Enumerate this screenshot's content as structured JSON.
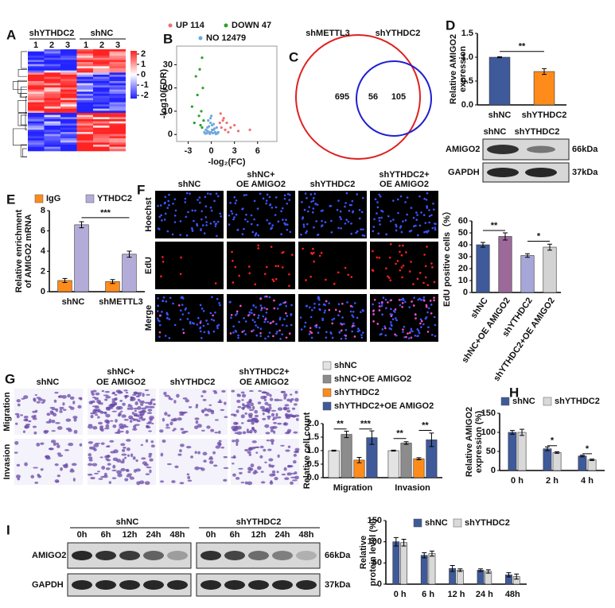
{
  "panel_labels": [
    "A",
    "B",
    "C",
    "D",
    "E",
    "F",
    "G",
    "H",
    "I"
  ],
  "heatmap": {
    "groups": [
      "shYTHDC2",
      "shNC"
    ],
    "columns": [
      "1",
      "2",
      "3",
      "1",
      "2",
      "3"
    ],
    "colorbar_ticks": [
      2,
      1,
      0,
      -1,
      -2
    ]
  },
  "venn": {
    "sets": [
      "shMETTL3",
      "shYTHDC2"
    ],
    "counts": [
      695,
      56,
      105
    ]
  },
  "blot_D": {
    "lanes": [
      "shNC",
      "shYTHDC2"
    ],
    "bands": [
      "AMIGO2",
      "GAPDH"
    ],
    "sizes": [
      "66kDa",
      "37kDa"
    ]
  },
  "images_F": {
    "columns": [
      [
        "shNC"
      ],
      [
        "shNC+",
        "OE AMIGO2"
      ],
      [
        "shYTHDC2"
      ],
      [
        "shYTHDC2+",
        "OE AMIGO2"
      ]
    ],
    "rows": [
      "Hoechst",
      "EdU",
      "Merge"
    ]
  },
  "images_G": {
    "columns": [
      [
        "shNC"
      ],
      [
        "shNC+",
        "OE AMIGO2"
      ],
      [
        "shYTHDC2"
      ],
      [
        "shYTHDC2+",
        "OE AMIGO2"
      ]
    ],
    "rows": [
      "Migration",
      "Invasion"
    ]
  },
  "blot_I": {
    "groups": [
      "shNC",
      "shYTHDC2"
    ],
    "lanes": [
      "0h",
      "6h",
      "12h",
      "24h",
      "48h"
    ],
    "bands": [
      "AMIGO2",
      "GAPDH"
    ],
    "sizes": [
      "66kDa",
      "37kDa"
    ]
  },
  "chart_data": [
    {
      "type": "scatter",
      "xlabel": "-log₂(FC)",
      "ylabel": "-log10(FDR)",
      "xlim": [
        -4.5,
        8.5
      ],
      "ylim": [
        -3,
        38
      ],
      "xticks": [
        -3,
        0,
        3,
        6
      ],
      "yticks": [
        0,
        10,
        20,
        30
      ],
      "series": [
        {
          "name": "UP 114",
          "color": "#f07070",
          "x": [
            1.2,
            1.5,
            2.0,
            3.0,
            2.5,
            1.1,
            1.8,
            5.0,
            3.5,
            1.3,
            2.2,
            1.6
          ],
          "y": [
            9,
            6,
            5,
            4,
            3,
            5,
            2,
            2,
            1.5,
            3,
            1,
            7
          ]
        },
        {
          "name": "DOWN 47",
          "color": "#2ca02c",
          "x": [
            -1.2,
            -1.5,
            -2.0,
            -1.1,
            -1.8,
            -2.5,
            -1.3,
            -1.6,
            -1.0,
            -2.2,
            -1.4,
            -1.2
          ],
          "y": [
            33,
            28,
            25,
            20,
            17,
            12,
            10,
            8,
            6,
            5,
            4,
            3
          ]
        },
        {
          "name": "NO 12479",
          "color": "#6fa8dc",
          "x": [
            -0.9,
            -0.7,
            -0.5,
            -0.3,
            -0.1,
            0.1,
            0.3,
            0.5,
            0.7,
            0.9,
            -0.6,
            -0.2,
            0.2,
            0.6,
            -0.4,
            0.4,
            0,
            -0.8,
            0.8,
            -0.3,
            0.3,
            -0.1,
            0.1,
            0,
            0.5,
            -0.5
          ],
          "y": [
            1,
            2,
            3,
            1,
            5,
            4,
            2,
            1,
            3,
            1,
            0.5,
            0.3,
            0.6,
            0.2,
            6,
            2.5,
            8,
            0.4,
            0.5,
            3.5,
            4.5,
            7,
            2,
            1,
            0.8,
            1.5
          ]
        }
      ]
    },
    {
      "type": "bar",
      "ylabel": [
        "Relative AMIGO2",
        "expression"
      ],
      "categories": [
        "shNC",
        "shYTHDC2"
      ],
      "values": [
        1.0,
        0.7
      ],
      "errors": [
        0.01,
        0.06
      ],
      "colors": [
        "#3f5a9a",
        "#ff8c1a"
      ],
      "ylim": [
        0,
        1.5
      ],
      "yticks": [
        {
          "value": 0,
          "label": "0.0"
        },
        0.5,
        {
          "value": 1,
          "label": "1.0"
        },
        1.5
      ],
      "annotations": [
        "**"
      ]
    },
    {
      "type": "bar",
      "ylabel": [
        "Relative enrichment",
        "of AMIGO2 mRNA"
      ],
      "categories": [
        "shNC",
        "shMETTL3"
      ],
      "series": [
        {
          "name": "IgG",
          "color": "#ff8c1a",
          "values": [
            1.1,
            1.0
          ],
          "errors": [
            0.2,
            0.2
          ]
        },
        {
          "name": "YTHDC2",
          "color": "#b3acd9",
          "values": [
            6.6,
            3.7
          ],
          "errors": [
            0.3,
            0.3
          ]
        }
      ],
      "ylim": [
        0,
        8
      ],
      "yticks": [
        0,
        2,
        4,
        6,
        8
      ],
      "annotations": [
        "***"
      ]
    },
    {
      "type": "bar",
      "ylabel": "EdU positive cells（%）",
      "categories": [
        "shNC",
        "shNC+OE AMIGO2",
        "shYTHDC2",
        "shYTHDC2+OE AMIGO2"
      ],
      "values": [
        40,
        47,
        31,
        38
      ],
      "errors": [
        2,
        3,
        1.5,
        2.5
      ],
      "colors": [
        "#3f5a9a",
        "#9b6a9a",
        "#a6a6d8",
        "#d3d3d3"
      ],
      "ylim": [
        0,
        60
      ],
      "yticks": [
        0,
        10,
        20,
        30,
        40,
        50,
        60
      ],
      "annotations": [
        "**",
        "*"
      ]
    },
    {
      "type": "bar",
      "ylabel": "Relative cell count",
      "categories": [
        "Migration",
        "Invasion"
      ],
      "series": [
        {
          "name": "shNC",
          "color": "#e3e3e3",
          "values": [
            1.0,
            1.0
          ],
          "errors": [
            0.02,
            0.02
          ]
        },
        {
          "name": "shNC+OE AMIGO2",
          "color": "#8c8c8c",
          "values": [
            1.6,
            1.28
          ],
          "errors": [
            0.12,
            0.05
          ]
        },
        {
          "name": "shYTHDC2",
          "color": "#ff8c1a",
          "values": [
            0.65,
            0.7
          ],
          "errors": [
            0.1,
            0.04
          ]
        },
        {
          "name": "shYTHDC2+OE AMIGO2",
          "color": "#3f5a9a",
          "values": [
            1.48,
            1.4
          ],
          "errors": [
            0.25,
            0.25
          ]
        }
      ],
      "ylim": [
        0,
        2
      ],
      "yticks": [
        {
          "value": 0,
          "label": "0.0"
        },
        0.5,
        {
          "value": 1,
          "label": "1.0"
        },
        1.5,
        {
          "value": 2,
          "label": "2.0"
        }
      ],
      "annotations": [
        "**",
        "***",
        "**",
        "**"
      ]
    },
    {
      "type": "bar",
      "ylabel": [
        "Relative AMIGO2",
        "expression (%)"
      ],
      "categories": [
        "0 h",
        "2 h",
        "4 h"
      ],
      "series": [
        {
          "name": "shNC",
          "color": "#3f5a9a",
          "values": [
            100,
            57,
            38
          ],
          "errors": [
            5,
            5,
            2
          ]
        },
        {
          "name": "shYTHDC2",
          "color": "#d9d9d9",
          "values": [
            100,
            47,
            28
          ],
          "errors": [
            8,
            2,
            2
          ]
        }
      ],
      "ylim": [
        0,
        150
      ],
      "yticks": [
        0,
        50,
        100,
        150
      ],
      "annotations": [
        "*",
        "*"
      ]
    },
    {
      "type": "bar",
      "ylabel": [
        "Relative",
        "protein level (%)"
      ],
      "categories": [
        "0 h",
        "6 h",
        "12 h",
        "24 h",
        "48h"
      ],
      "series": [
        {
          "name": "shNC",
          "color": "#3f5a9a",
          "values": [
            100,
            68,
            37,
            33,
            22
          ],
          "errors": [
            10,
            6,
            7,
            3,
            5
          ]
        },
        {
          "name": "shYTHDC2",
          "color": "#d9d9d9",
          "values": [
            98,
            72,
            33,
            30,
            18
          ],
          "errors": [
            8,
            6,
            3,
            4,
            6
          ]
        }
      ],
      "ylim": [
        0,
        150
      ],
      "yticks": [
        0,
        50,
        100,
        150
      ],
      "annotations": []
    }
  ]
}
